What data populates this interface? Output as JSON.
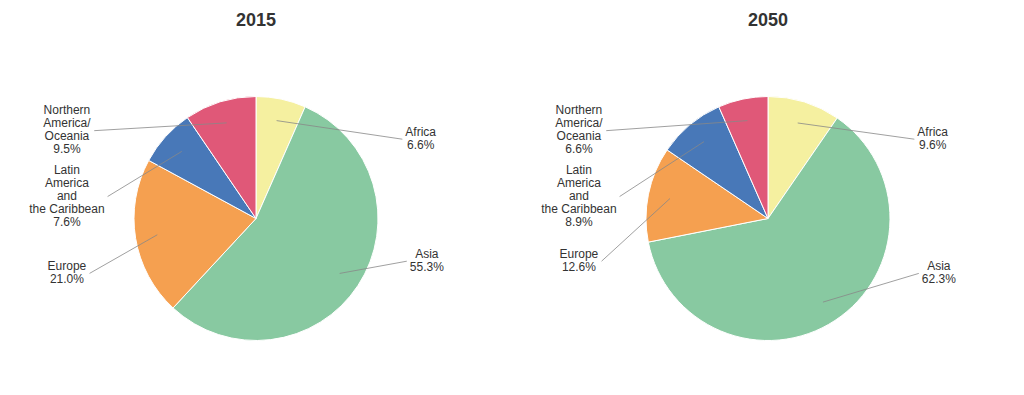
{
  "chart_data": [
    {
      "type": "pie",
      "title": "2015",
      "categories": [
        "Africa",
        "Asia",
        "Europe",
        "Latin\nAmerica\nand\nthe Caribbean",
        "Northern\nAmerica/\nOceania"
      ],
      "values": [
        6.6,
        55.3,
        21.0,
        7.6,
        9.5
      ],
      "value_labels": [
        "6.6%",
        "55.3%",
        "21.0%",
        "7.6%",
        "9.5%"
      ],
      "colors": [
        "#f5f0a0",
        "#88c9a1",
        "#f5a050",
        "#4878b8",
        "#e05878"
      ],
      "data_labels": true
    },
    {
      "type": "pie",
      "title": "2050",
      "categories": [
        "Africa",
        "Asia",
        "Europe",
        "Latin\nAmerica\nand\nthe Caribbean",
        "Northern\nAmerica/\nOceania"
      ],
      "values": [
        9.6,
        62.3,
        12.6,
        8.9,
        6.6
      ],
      "value_labels": [
        "9.6%",
        "62.3%",
        "12.6%",
        "8.9%",
        "6.6%"
      ],
      "colors": [
        "#f5f0a0",
        "#88c9a1",
        "#f5a050",
        "#4878b8",
        "#e05878"
      ],
      "data_labels": true
    }
  ]
}
